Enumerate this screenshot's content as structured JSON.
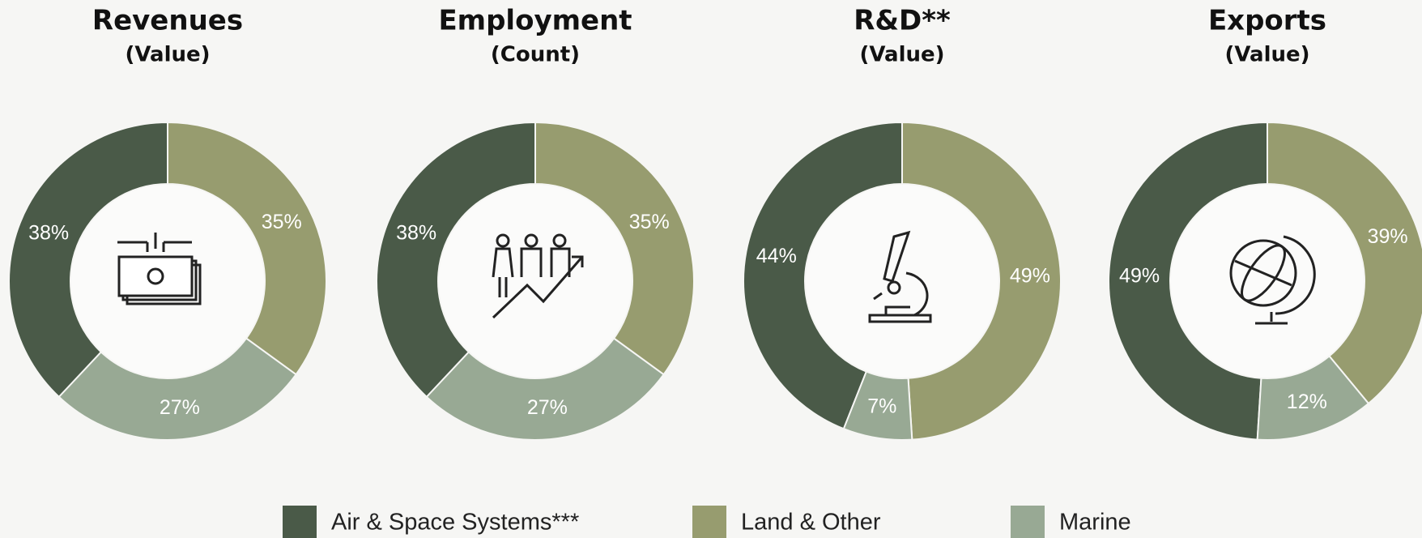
{
  "chart_data": [
    {
      "type": "pie",
      "title": "Revenues",
      "subtitle": "(Value)",
      "categories": [
        "Air & Space Systems***",
        "Land & Other",
        "Marine"
      ],
      "values": [
        38,
        35,
        27
      ],
      "value_labels": [
        "38%",
        "35%",
        "27%"
      ],
      "colors": [
        "#4a5a48",
        "#979c6f",
        "#98a994"
      ]
    },
    {
      "type": "pie",
      "title": "Employment",
      "subtitle": "(Count)",
      "categories": [
        "Air & Space Systems***",
        "Land & Other",
        "Marine"
      ],
      "values": [
        38,
        35,
        27
      ],
      "value_labels": [
        "38%",
        "35%",
        "27%"
      ],
      "colors": [
        "#4a5a48",
        "#979c6f",
        "#98a994"
      ]
    },
    {
      "type": "pie",
      "title": "R&D**",
      "subtitle": "(Value)",
      "categories": [
        "Air & Space Systems***",
        "Land & Other",
        "Marine"
      ],
      "values": [
        44,
        49,
        7
      ],
      "value_labels": [
        "44%",
        "49%",
        "7%"
      ],
      "colors": [
        "#4a5a48",
        "#979c6f",
        "#98a994"
      ]
    },
    {
      "type": "pie",
      "title": "Exports",
      "subtitle": "(Value)",
      "categories": [
        "Air & Space Systems***",
        "Land & Other",
        "Marine"
      ],
      "values": [
        49,
        39,
        12
      ],
      "value_labels": [
        "49%",
        "39%",
        "12%"
      ],
      "colors": [
        "#4a5a48",
        "#979c6f",
        "#98a994"
      ]
    }
  ]
}
